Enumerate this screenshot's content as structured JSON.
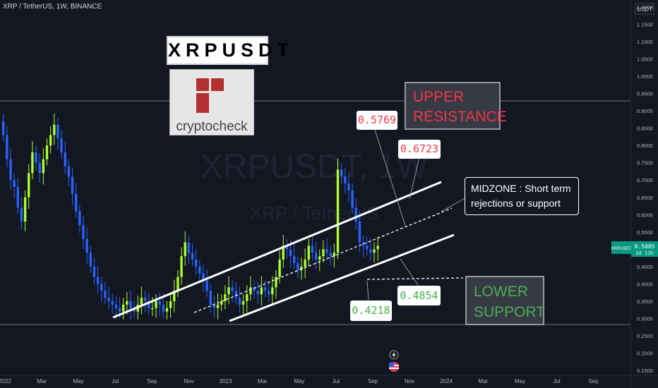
{
  "header": {
    "symbol_info": "XRP / TetherUS, 1W, BINANCE",
    "currency": "USDT"
  },
  "watermark": {
    "ticker": "XRPUSDT, 1W",
    "pair": "XRP / TetherUS"
  },
  "brand": {
    "title": "XRPUSDT",
    "logo_text": "cryptocheck"
  },
  "annotations": {
    "upper_resistance": "UPPER\nRESISTANCE",
    "lower_support": "LOWER\nSUPPORT",
    "midzone": "MIDZONE : Short term\nrejections or support",
    "labels": [
      {
        "text": "0.5769",
        "color": "#f23645",
        "tone": "red"
      },
      {
        "text": "0.6723",
        "color": "#f23645",
        "tone": "red"
      },
      {
        "text": "0.4854",
        "color": "#4caf50",
        "tone": "green"
      },
      {
        "text": "0.4218",
        "color": "#4caf50",
        "tone": "green"
      }
    ]
  },
  "last_price": {
    "symbol": "XRPUSDT",
    "value": "0.5085",
    "countdown": "2d 13h"
  },
  "colors": {
    "bg": "#131722",
    "up": "#adff2f",
    "down": "#2962ff",
    "upper": "#f23645",
    "lower": "#4caf50"
  },
  "chart_data": {
    "type": "candlestick",
    "title": "",
    "x_ticks": [
      "2022",
      "Mar",
      "May",
      "Jul",
      "Sep",
      "Nov",
      "2023",
      "Mar",
      "May",
      "Jul",
      "Sep",
      "Nov",
      "2024",
      "Mar",
      "May",
      "Jul",
      "Sep"
    ],
    "y_ticks": [
      "1.2000",
      "1.1500",
      "1.1000",
      "1.0500",
      "1.0000",
      "0.9500",
      "0.9000",
      "0.8500",
      "0.8000",
      "0.7500",
      "0.7000",
      "0.6500",
      "0.6000",
      "0.5500",
      "0.5000",
      "0.4500",
      "0.4000",
      "0.3500",
      "0.3000",
      "0.2500",
      "0.2000",
      "0.1500"
    ],
    "ylim": [
      0.15,
      1.2
    ],
    "horizontal_lines": [
      0.955,
      0.291
    ],
    "closes": [
      0.83,
      0.76,
      0.7,
      0.68,
      0.62,
      0.58,
      0.65,
      0.72,
      0.78,
      0.75,
      0.72,
      0.76,
      0.8,
      0.83,
      0.86,
      0.82,
      0.78,
      0.74,
      0.71,
      0.66,
      0.61,
      0.57,
      0.53,
      0.49,
      0.45,
      0.42,
      0.4,
      0.38,
      0.36,
      0.35,
      0.34,
      0.33,
      0.32,
      0.34,
      0.35,
      0.33,
      0.32,
      0.34,
      0.36,
      0.35,
      0.33,
      0.33,
      0.35,
      0.34,
      0.32,
      0.33,
      0.35,
      0.38,
      0.42,
      0.48,
      0.52,
      0.49,
      0.47,
      0.45,
      0.43,
      0.41,
      0.38,
      0.34,
      0.33,
      0.34,
      0.35,
      0.37,
      0.39,
      0.38,
      0.36,
      0.34,
      0.35,
      0.37,
      0.39,
      0.38,
      0.37,
      0.39,
      0.38,
      0.37,
      0.39,
      0.42,
      0.47,
      0.51,
      0.5,
      0.48,
      0.46,
      0.44,
      0.45,
      0.47,
      0.51,
      0.49,
      0.47,
      0.48,
      0.5,
      0.49,
      0.48,
      0.49,
      0.73,
      0.71,
      0.69,
      0.67,
      0.62,
      0.58,
      0.52,
      0.51,
      0.5,
      0.49,
      0.5,
      0.51
    ],
    "channels": [
      {
        "name": "",
        "style": "solid",
        "start": [
          0.31,
          0.3
        ],
        "end": [
          0.695,
          0.708
        ]
      },
      {
        "name": "",
        "style": "solid",
        "start": [
          0.3,
          0.297
        ],
        "end": [
          0.532,
          0.561
        ]
      },
      {
        "name": "",
        "style": "dashed",
        "start": [
          0.365,
          0.33
        ],
        "end": [
          0.508,
          0.615
        ]
      }
    ]
  }
}
